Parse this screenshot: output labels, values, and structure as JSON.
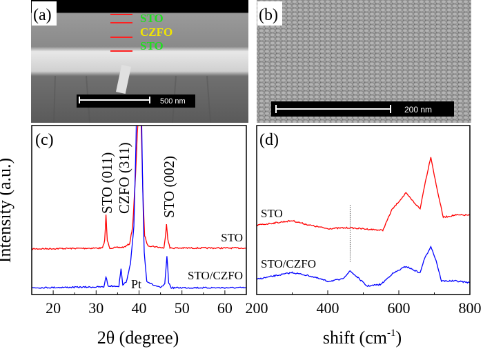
{
  "panels": {
    "a": {
      "label": "(a)",
      "layers": [
        {
          "text": "STO",
          "color": "#22dd22"
        },
        {
          "text": "CZFO",
          "color": "#f2e600"
        },
        {
          "text": "STO",
          "color": "#22dd22"
        }
      ],
      "marker_color": "#ff2020",
      "scale_bar": "500 nm"
    },
    "b": {
      "label": "(b)",
      "scale_bar": "200 nm"
    }
  },
  "chart_data": [
    {
      "type": "line",
      "panel_label": "(c)",
      "xlabel": "2θ (degree)",
      "ylabel": "Intensity (a.u.)",
      "xlim": [
        15,
        65
      ],
      "ylim": [
        0,
        100
      ],
      "xticks": [
        20,
        30,
        40,
        50,
        60
      ],
      "grid": false,
      "annotations": {
        "sto011": "STO (011)",
        "czfo311": "CZFO (311)",
        "sto002": "STO (002)",
        "pt": "Pt"
      },
      "series": [
        {
          "name": "STO",
          "color": "#ff0000",
          "points": [
            [
              15,
              27
            ],
            [
              31.5,
              27.5
            ],
            [
              32,
              32
            ],
            [
              32.3,
              47
            ],
            [
              32.6,
              32
            ],
            [
              33.2,
              27.5
            ],
            [
              36.5,
              28
            ],
            [
              37.8,
              30
            ],
            [
              38.5,
              40
            ],
            [
              39.2,
              71
            ],
            [
              39.6,
              95
            ],
            [
              40,
              112
            ],
            [
              40.5,
              100
            ],
            [
              40.9,
              60
            ],
            [
              41.3,
              35
            ],
            [
              42,
              29
            ],
            [
              45.8,
              27.5
            ],
            [
              46.1,
              33
            ],
            [
              46.4,
              42
            ],
            [
              46.7,
              33
            ],
            [
              47.2,
              27.5
            ],
            [
              65,
              27.5
            ]
          ]
        },
        {
          "name": "STO/CZFO",
          "color": "#0000ff",
          "points": [
            [
              15,
              4
            ],
            [
              31.8,
              4.5
            ],
            [
              32.3,
              10.6
            ],
            [
              32.8,
              5
            ],
            [
              35.3,
              5
            ],
            [
              35.8,
              15
            ],
            [
              36.2,
              6
            ],
            [
              37,
              7
            ],
            [
              37.6,
              14
            ],
            [
              38,
              18
            ],
            [
              38.8,
              40
            ],
            [
              39.3,
              90
            ],
            [
              39.6,
              140
            ],
            [
              40.4,
              140
            ],
            [
              40.8,
              70
            ],
            [
              41.2,
              25
            ],
            [
              41.8,
              8
            ],
            [
              43,
              6
            ],
            [
              45,
              4
            ],
            [
              46,
              6
            ],
            [
              46.5,
              23
            ],
            [
              46.9,
              7
            ],
            [
              47.5,
              4
            ],
            [
              65,
              4
            ]
          ]
        }
      ]
    },
    {
      "type": "line",
      "panel_label": "(d)",
      "xlabel": "shift (cm",
      "xlabel_sup": "-1",
      "xlabel_end": ")",
      "xlim": [
        200,
        800
      ],
      "ylim": [
        0,
        100
      ],
      "xticks": [
        200,
        400,
        600,
        800
      ],
      "grid": false,
      "marker_line_x": 463,
      "series": [
        {
          "name": "STO",
          "color": "#ff0000",
          "points": [
            [
              200,
              41
            ],
            [
              300,
              43.7
            ],
            [
              350,
              41
            ],
            [
              400,
              39
            ],
            [
              460,
              39.5
            ],
            [
              555,
              38
            ],
            [
              580,
              50
            ],
            [
              620,
              60
            ],
            [
              645,
              54
            ],
            [
              660,
              50.6
            ],
            [
              670,
              62
            ],
            [
              690,
              81.6
            ],
            [
              705,
              65
            ],
            [
              725,
              45.7
            ],
            [
              760,
              47
            ],
            [
              800,
              47
            ]
          ]
        },
        {
          "name": "STO/CZFO",
          "color": "#0000ff",
          "points": [
            [
              200,
              9
            ],
            [
              300,
              13
            ],
            [
              350,
              11
            ],
            [
              400,
              7.8
            ],
            [
              440,
              9
            ],
            [
              463,
              13.9
            ],
            [
              490,
              9
            ],
            [
              510,
              5
            ],
            [
              550,
              6
            ],
            [
              580,
              12
            ],
            [
              620,
              16.7
            ],
            [
              660,
              12.7
            ],
            [
              670,
              20
            ],
            [
              690,
              28.6
            ],
            [
              705,
              20
            ],
            [
              720,
              8
            ],
            [
              760,
              8
            ],
            [
              800,
              7
            ]
          ]
        }
      ]
    }
  ]
}
